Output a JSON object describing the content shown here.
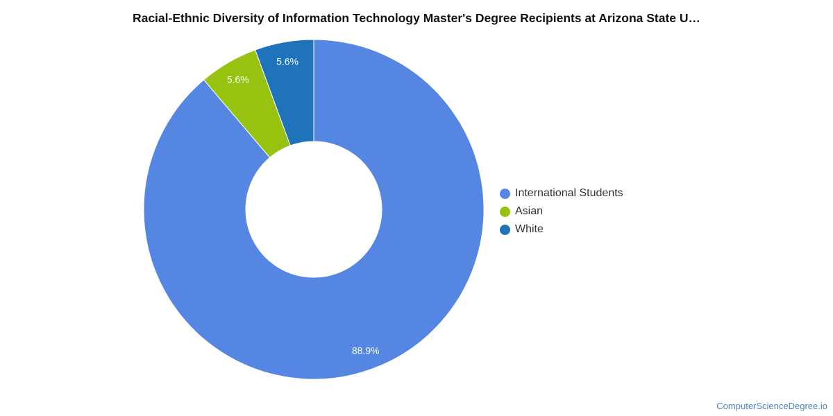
{
  "title": "Racial-Ethnic Diversity of Information Technology Master's Degree Recipients at Arizona State U…",
  "watermark": "ComputerScienceDegree.io",
  "chart_data": {
    "type": "pie",
    "variant": "donut",
    "categories": [
      "International Students",
      "Asian",
      "White"
    ],
    "values": [
      88.9,
      5.6,
      5.6
    ],
    "data_labels": [
      "88.9%",
      "5.6%",
      "5.6%"
    ],
    "colors": [
      "#5486e2",
      "#97c20f",
      "#1f73ba"
    ],
    "legend_position": "right"
  },
  "legend": {
    "items": [
      {
        "label": "International Students",
        "color": "#5486e2"
      },
      {
        "label": "Asian",
        "color": "#97c20f"
      },
      {
        "label": "White",
        "color": "#1f73ba"
      }
    ]
  }
}
